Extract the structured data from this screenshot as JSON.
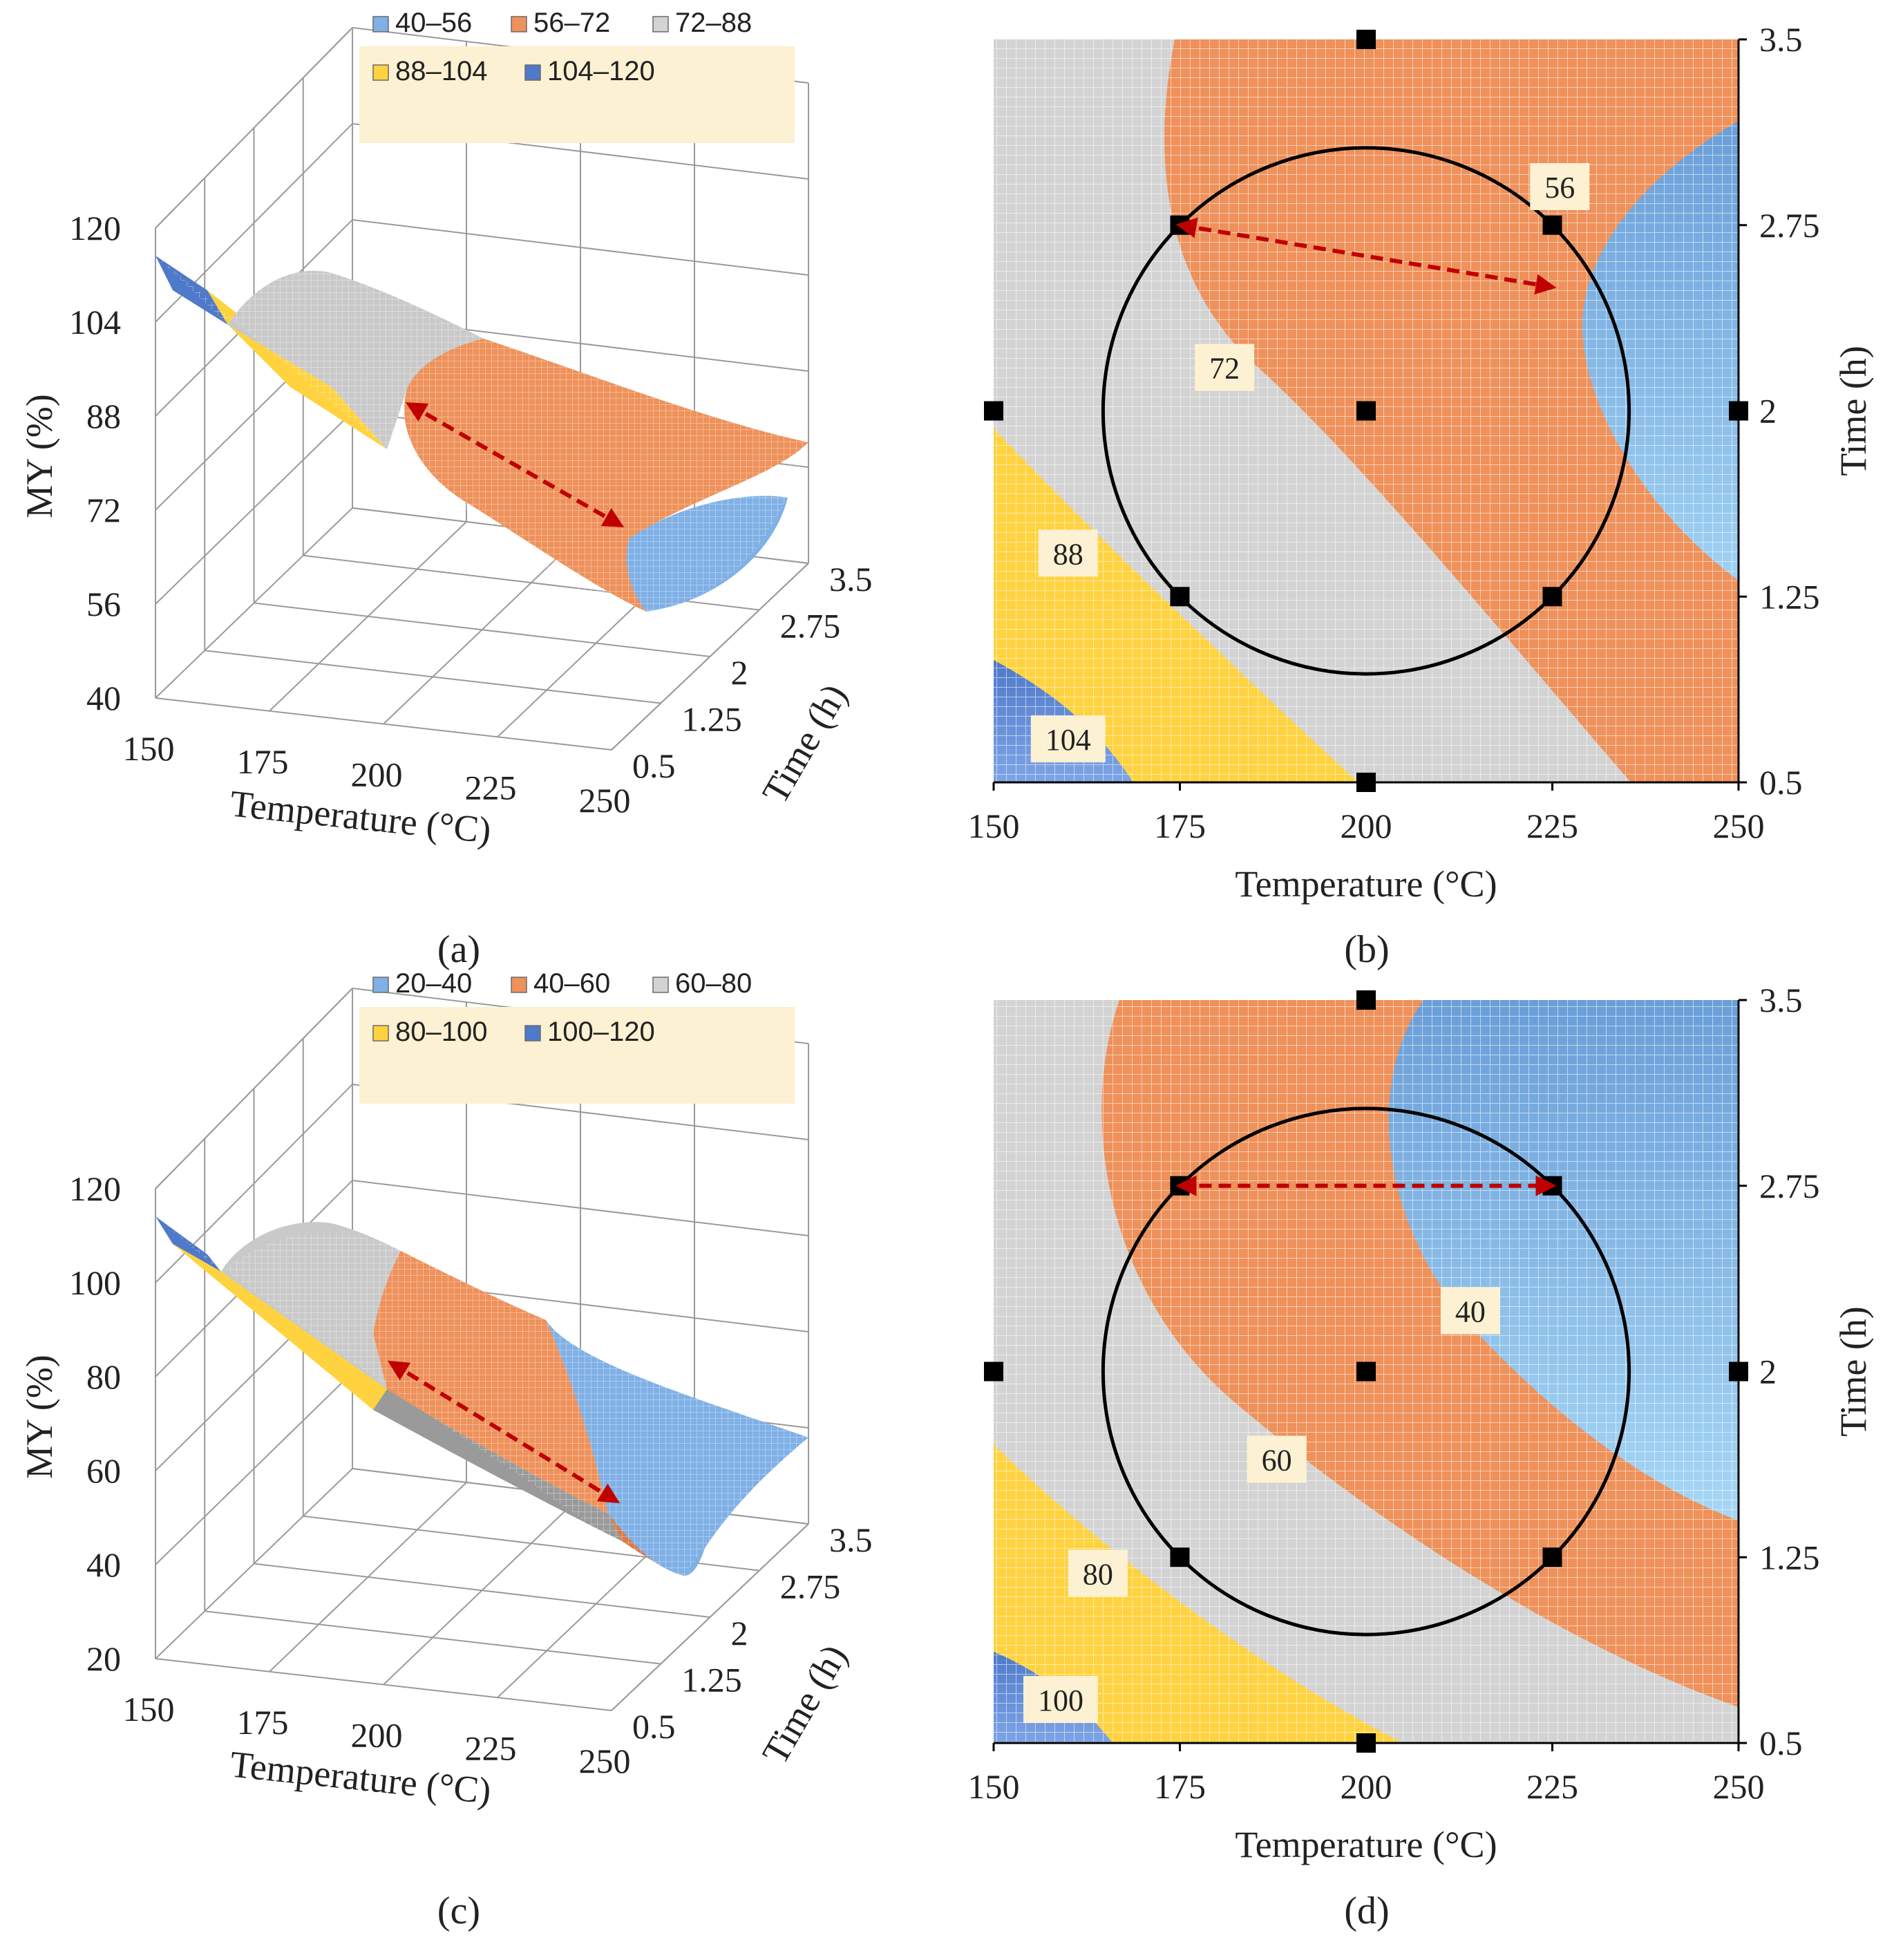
{
  "colors": {
    "band_low": "#7fb0e6",
    "band_mid": "#ee915a",
    "band_grey": "#d3d3d3",
    "band_yellow": "#ffd23f",
    "band_top": "#4f79c9",
    "arrow": "#c00000",
    "legend_bg": "#fdf1d3"
  },
  "chart_data": [
    {
      "panel": "a",
      "type": "surface3d",
      "caption": "(a)",
      "xlabel": "Temperature (°C)",
      "ylabel": "Time (h)",
      "zlabel": "MY (%)",
      "x_ticks": [
        "150",
        "175",
        "200",
        "225",
        "250"
      ],
      "y_ticks": [
        "0.5",
        "1.25",
        "2",
        "2.75",
        "3.5"
      ],
      "z_ticks": [
        "40",
        "56",
        "72",
        "88",
        "104",
        "120"
      ],
      "zlim": [
        40,
        120
      ],
      "legend": [
        "40–56",
        "56–72",
        "72–88",
        "88–104",
        "104–120"
      ],
      "legend_position": "top"
    },
    {
      "panel": "b",
      "type": "contour",
      "caption": "(b)",
      "xlabel": "Temperature (°C)",
      "ylabel": "Time (h)",
      "x_ticks": [
        "150",
        "175",
        "200",
        "225",
        "250"
      ],
      "y_ticks": [
        "0.5",
        "1.25",
        "2",
        "2.75",
        "3.5"
      ],
      "xlim": [
        150,
        250
      ],
      "ylim": [
        0.5,
        3.5
      ],
      "contour_labels": [
        {
          "text": "56",
          "x": 226,
          "y": 2.9
        },
        {
          "text": "72",
          "x": 181,
          "y": 2.17
        },
        {
          "text": "88",
          "x": 160,
          "y": 1.42
        },
        {
          "text": "104",
          "x": 160,
          "y": 0.67
        }
      ],
      "design_points": [
        {
          "x": 175,
          "y": 1.25
        },
        {
          "x": 225,
          "y": 1.25
        },
        {
          "x": 175,
          "y": 2.75
        },
        {
          "x": 225,
          "y": 2.75
        },
        {
          "x": 200,
          "y": 2
        },
        {
          "x": 150,
          "y": 2
        },
        {
          "x": 250,
          "y": 2
        },
        {
          "x": 200,
          "y": 0.5
        },
        {
          "x": 200,
          "y": 3.5
        }
      ],
      "arrow": {
        "from": [
          175,
          2.75
        ],
        "to": [
          225,
          2.5
        ]
      }
    },
    {
      "panel": "c",
      "type": "surface3d",
      "caption": "(c)",
      "xlabel": "Temperature (°C)",
      "ylabel": "Time (h)",
      "zlabel": "MY (%)",
      "x_ticks": [
        "150",
        "175",
        "200",
        "225",
        "250"
      ],
      "y_ticks": [
        "0.5",
        "1.25",
        "2",
        "2.75",
        "3.5"
      ],
      "z_ticks": [
        "20",
        "40",
        "60",
        "80",
        "100",
        "120"
      ],
      "zlim": [
        20,
        120
      ],
      "legend": [
        "20–40",
        "40–60",
        "60–80",
        "80–100",
        "100–120"
      ],
      "legend_position": "top"
    },
    {
      "panel": "d",
      "type": "contour",
      "caption": "(d)",
      "xlabel": "Temperature (°C)",
      "ylabel": "Time (h)",
      "x_ticks": [
        "150",
        "175",
        "200",
        "225",
        "250"
      ],
      "y_ticks": [
        "0.5",
        "1.25",
        "2",
        "2.75",
        "3.5"
      ],
      "xlim": [
        150,
        250
      ],
      "ylim": [
        0.5,
        3.5
      ],
      "contour_labels": [
        {
          "text": "40",
          "x": 214,
          "y": 2.24
        },
        {
          "text": "60",
          "x": 188,
          "y": 1.64
        },
        {
          "text": "80",
          "x": 164,
          "y": 1.18
        },
        {
          "text": "100",
          "x": 159,
          "y": 0.67
        }
      ],
      "design_points": [
        {
          "x": 175,
          "y": 1.25
        },
        {
          "x": 225,
          "y": 1.25
        },
        {
          "x": 175,
          "y": 2.75
        },
        {
          "x": 225,
          "y": 2.75
        },
        {
          "x": 200,
          "y": 2
        },
        {
          "x": 150,
          "y": 2
        },
        {
          "x": 250,
          "y": 2
        },
        {
          "x": 200,
          "y": 0.5
        },
        {
          "x": 200,
          "y": 3.5
        }
      ],
      "arrow": {
        "from": [
          175,
          2.75
        ],
        "to": [
          225,
          2.75
        ]
      }
    }
  ]
}
